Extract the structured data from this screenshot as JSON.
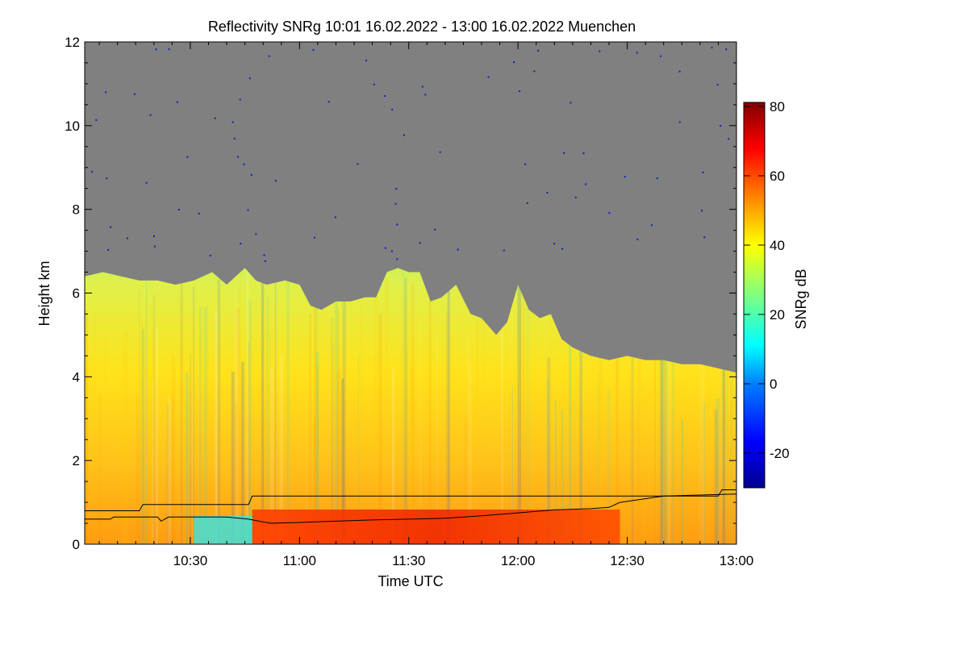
{
  "chart_data": {
    "type": "heatmap",
    "title": "Reflectivity SNRg   10:01 16.02.2022 - 13:00 16.02.2022 Muenchen",
    "xlabel": "Time UTC",
    "ylabel": "Height km",
    "xlim": [
      "10:01",
      "13:00"
    ],
    "xlim_minutes": [
      601,
      780
    ],
    "ylim": [
      0,
      12
    ],
    "xticks": [
      {
        "label": "10:30",
        "minutes": 630
      },
      {
        "label": "11:00",
        "minutes": 660
      },
      {
        "label": "11:30",
        "minutes": 690
      },
      {
        "label": "12:00",
        "minutes": 720
      },
      {
        "label": "12:30",
        "minutes": 750
      },
      {
        "label": "13:00",
        "minutes": 780
      }
    ],
    "yticks": [
      "0",
      "2",
      "4",
      "6",
      "8",
      "10",
      "12"
    ],
    "colorbar": {
      "label": "SNRg dB",
      "range": [
        -30,
        80
      ],
      "ticks": [
        "-20",
        "0",
        "20",
        "40",
        "60",
        "80"
      ]
    },
    "no_data_color": "#808080",
    "echo_top_km": [
      [
        601,
        6.4
      ],
      [
        606,
        6.5
      ],
      [
        611,
        6.4
      ],
      [
        616,
        6.3
      ],
      [
        621,
        6.3
      ],
      [
        626,
        6.2
      ],
      [
        631,
        6.3
      ],
      [
        636,
        6.5
      ],
      [
        640,
        6.2
      ],
      [
        645,
        6.6
      ],
      [
        648,
        6.3
      ],
      [
        651,
        6.2
      ],
      [
        656,
        6.3
      ],
      [
        660,
        6.2
      ],
      [
        663,
        5.7
      ],
      [
        666,
        5.6
      ],
      [
        670,
        5.8
      ],
      [
        674,
        5.8
      ],
      [
        678,
        5.9
      ],
      [
        681,
        5.9
      ],
      [
        684,
        6.5
      ],
      [
        687,
        6.6
      ],
      [
        690,
        6.5
      ],
      [
        693,
        6.5
      ],
      [
        696,
        5.8
      ],
      [
        699,
        5.9
      ],
      [
        703,
        6.2
      ],
      [
        707,
        5.5
      ],
      [
        710,
        5.4
      ],
      [
        714,
        5.0
      ],
      [
        717,
        5.3
      ],
      [
        720,
        6.2
      ],
      [
        723,
        5.6
      ],
      [
        726,
        5.4
      ],
      [
        729,
        5.5
      ],
      [
        732,
        4.9
      ],
      [
        735,
        4.7
      ],
      [
        740,
        4.5
      ],
      [
        745,
        4.4
      ],
      [
        750,
        4.5
      ],
      [
        755,
        4.4
      ],
      [
        760,
        4.4
      ],
      [
        765,
        4.3
      ],
      [
        770,
        4.3
      ],
      [
        775,
        4.2
      ],
      [
        780,
        4.1
      ]
    ],
    "step_line_km": [
      [
        601,
        0.8
      ],
      [
        616,
        0.8
      ],
      [
        617,
        0.95
      ],
      [
        646,
        0.95
      ],
      [
        647,
        1.15
      ],
      [
        775,
        1.15
      ],
      [
        776,
        1.3
      ],
      [
        780,
        1.3
      ]
    ],
    "lower_line_km": [
      [
        601,
        0.6
      ],
      [
        608,
        0.6
      ],
      [
        609,
        0.65
      ],
      [
        621,
        0.65
      ],
      [
        622,
        0.55
      ],
      [
        624,
        0.65
      ],
      [
        640,
        0.65
      ],
      [
        646,
        0.6
      ],
      [
        652,
        0.5
      ],
      [
        660,
        0.52
      ],
      [
        670,
        0.55
      ],
      [
        680,
        0.58
      ],
      [
        690,
        0.6
      ],
      [
        700,
        0.62
      ],
      [
        710,
        0.68
      ],
      [
        720,
        0.75
      ],
      [
        730,
        0.82
      ],
      [
        740,
        0.85
      ],
      [
        745,
        0.88
      ],
      [
        748,
        1.0
      ],
      [
        752,
        1.05
      ],
      [
        756,
        1.1
      ],
      [
        760,
        1.15
      ],
      [
        780,
        1.2
      ]
    ]
  }
}
